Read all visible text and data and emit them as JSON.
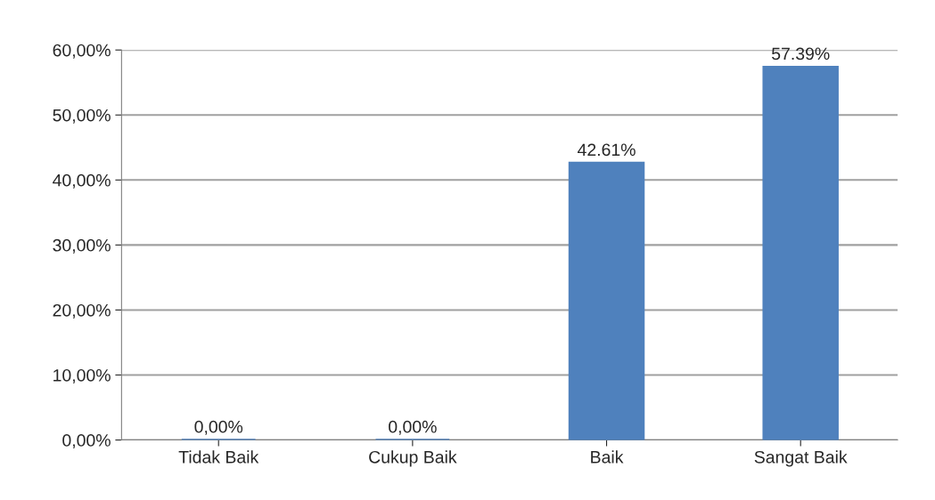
{
  "chart_data": {
    "type": "bar",
    "categories": [
      "Tidak Baik",
      "Cukup Baik",
      "Baik",
      "Sangat Baik"
    ],
    "values": [
      0,
      0,
      42.61,
      57.39
    ],
    "value_labels": [
      "0,00%",
      "0,00%",
      "42.61%",
      "57.39%"
    ],
    "color": "#4f81bd",
    "ylim": [
      0,
      60
    ],
    "yticks": [
      {
        "value": 0,
        "label": "0,00%"
      },
      {
        "value": 10,
        "label": "10,00%"
      },
      {
        "value": 20,
        "label": "20,00%"
      },
      {
        "value": 30,
        "label": "30,00%"
      },
      {
        "value": 40,
        "label": "40,00%"
      },
      {
        "value": 50,
        "label": "50,00%"
      },
      {
        "value": 60,
        "label": "60,00%"
      }
    ],
    "grid": "y"
  }
}
